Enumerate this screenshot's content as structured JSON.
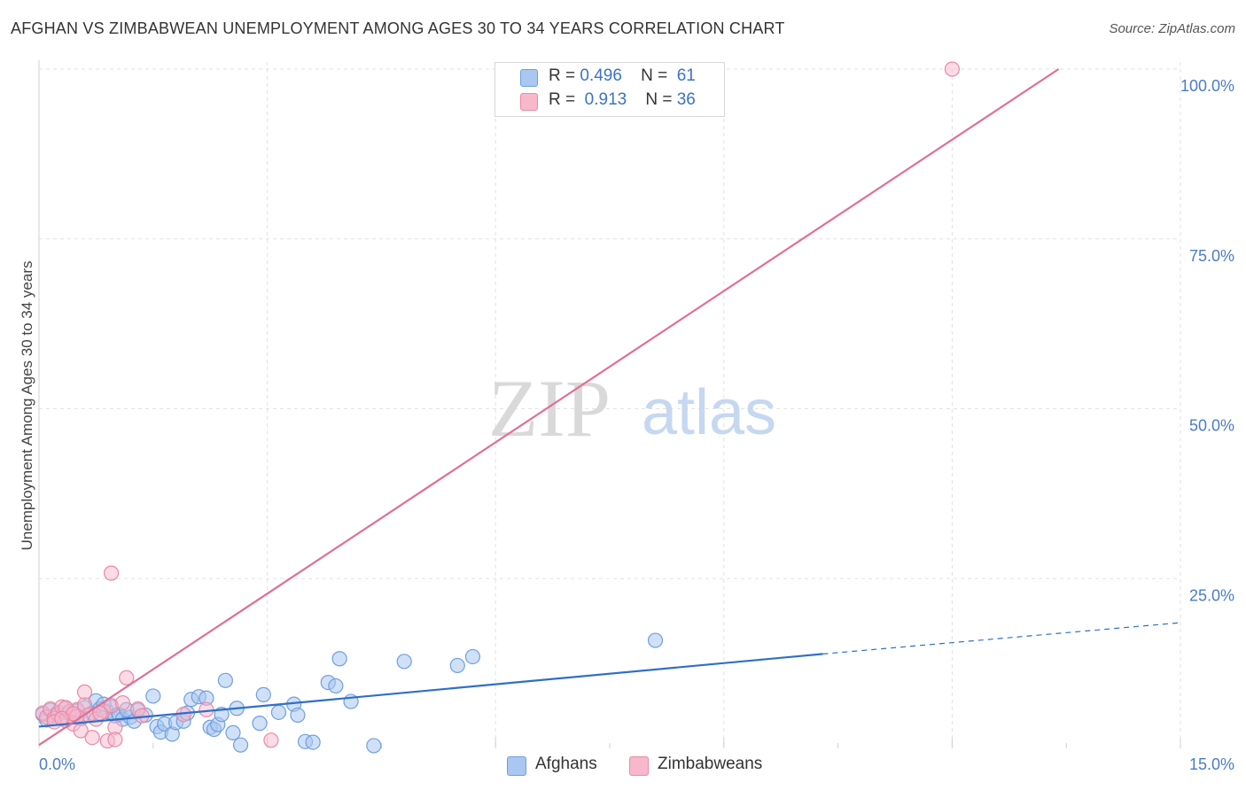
{
  "title": "AFGHAN VS ZIMBABWEAN UNEMPLOYMENT AMONG AGES 30 TO 34 YEARS CORRELATION CHART",
  "source": "Source: ZipAtlas.com",
  "legend": {
    "rows": [
      {
        "r_label": "R =",
        "r_value": "0.496",
        "n_label": "N =",
        "n_value": "61"
      },
      {
        "r_label": "R =",
        "r_value": "0.913",
        "n_label": "N =",
        "n_value": "36"
      }
    ]
  },
  "bottom_legend": {
    "afghans": "Afghans",
    "zimbabweans": "Zimbabweans"
  },
  "watermark": {
    "zip": "ZIP",
    "atlas": "atlas"
  },
  "colors": {
    "afghan_fill": "#a9c7f0",
    "afghan_stroke": "#6f9fdc",
    "afghan_line": "#2f6fc8",
    "zimbabwe_fill": "#f7b8cb",
    "zimbabwe_stroke": "#e88aa7",
    "zimbabwe_line": "#e06f98",
    "grid": "#e2e2e2",
    "tick_text": "#4a7cc7"
  },
  "chart_data": {
    "type": "scatter",
    "title": "AFGHAN VS ZIMBABWEAN UNEMPLOYMENT AMONG AGES 30 TO 34 YEARS CORRELATION CHART",
    "xlabel": "",
    "ylabel": "Unemployment Among Ages 30 to 34 years",
    "xlim": [
      0,
      15
    ],
    "ylim": [
      0,
      100
    ],
    "x_tick_labels": [
      "0.0%",
      "15.0%"
    ],
    "y_ticks": [
      25,
      50,
      75,
      100
    ],
    "y_tick_labels": [
      "25.0%",
      "50.0%",
      "75.0%",
      "100.0%"
    ],
    "grid": true,
    "series": [
      {
        "name": "Afghans",
        "r": 0.496,
        "n": 61,
        "trend": {
          "x0": 0.0,
          "y0": 3.2,
          "x1": 10.3,
          "y1": 13.9,
          "dashed_to_x": 15.0,
          "dashed_to_y": 18.5
        },
        "points": [
          [
            0.05,
            5.0
          ],
          [
            0.1,
            4.2
          ],
          [
            0.15,
            5.6
          ],
          [
            0.2,
            4.8
          ],
          [
            0.25,
            5.3
          ],
          [
            0.3,
            4.5
          ],
          [
            0.35,
            5.9
          ],
          [
            0.4,
            5.1
          ],
          [
            0.45,
            4.7
          ],
          [
            0.5,
            5.5
          ],
          [
            0.6,
            6.0
          ],
          [
            0.7,
            5.2
          ],
          [
            0.75,
            7.0
          ],
          [
            0.8,
            5.8
          ],
          [
            0.9,
            5.4
          ],
          [
            0.95,
            6.1
          ],
          [
            1.0,
            4.8
          ],
          [
            1.05,
            5.0
          ],
          [
            1.1,
            4.3
          ],
          [
            1.2,
            4.6
          ],
          [
            1.25,
            4.0
          ],
          [
            1.3,
            5.6
          ],
          [
            1.4,
            4.9
          ],
          [
            1.5,
            7.7
          ],
          [
            1.55,
            3.2
          ],
          [
            1.6,
            2.4
          ],
          [
            1.65,
            3.6
          ],
          [
            1.75,
            2.1
          ],
          [
            1.8,
            3.8
          ],
          [
            1.9,
            4.0
          ],
          [
            1.95,
            5.2
          ],
          [
            2.0,
            7.2
          ],
          [
            2.1,
            7.6
          ],
          [
            2.2,
            7.4
          ],
          [
            2.25,
            3.1
          ],
          [
            2.3,
            2.8
          ],
          [
            2.35,
            3.5
          ],
          [
            2.4,
            5.0
          ],
          [
            2.45,
            10.0
          ],
          [
            2.55,
            2.3
          ],
          [
            2.6,
            5.9
          ],
          [
            2.65,
            0.5
          ],
          [
            2.9,
            3.7
          ],
          [
            2.95,
            7.9
          ],
          [
            3.15,
            5.3
          ],
          [
            3.35,
            6.5
          ],
          [
            3.4,
            4.9
          ],
          [
            3.5,
            1.0
          ],
          [
            3.6,
            0.9
          ],
          [
            3.8,
            9.7
          ],
          [
            3.9,
            9.2
          ],
          [
            3.95,
            13.2
          ],
          [
            4.1,
            6.9
          ],
          [
            4.4,
            0.4
          ],
          [
            4.8,
            12.8
          ],
          [
            5.5,
            12.2
          ],
          [
            5.7,
            13.5
          ],
          [
            8.1,
            15.9
          ],
          [
            0.55,
            4.4
          ],
          [
            0.85,
            6.5
          ],
          [
            1.15,
            5.7
          ]
        ]
      },
      {
        "name": "Zimbabweans",
        "r": 0.913,
        "n": 36,
        "trend": {
          "x0": 0.0,
          "y0": 0.5,
          "x1": 13.4,
          "y1": 100.0
        },
        "points": [
          [
            0.05,
            5.2
          ],
          [
            0.1,
            4.6
          ],
          [
            0.15,
            5.8
          ],
          [
            0.2,
            4.4
          ],
          [
            0.25,
            5.0
          ],
          [
            0.3,
            6.1
          ],
          [
            0.35,
            4.1
          ],
          [
            0.4,
            5.4
          ],
          [
            0.45,
            3.6
          ],
          [
            0.5,
            5.7
          ],
          [
            0.55,
            2.6
          ],
          [
            0.6,
            6.4
          ],
          [
            0.65,
            4.9
          ],
          [
            0.7,
            1.6
          ],
          [
            0.75,
            4.3
          ],
          [
            0.85,
            5.5
          ],
          [
            0.9,
            1.1
          ],
          [
            0.95,
            6.3
          ],
          [
            1.0,
            3.1
          ],
          [
            1.1,
            6.7
          ],
          [
            1.15,
            10.4
          ],
          [
            1.3,
            5.8
          ],
          [
            1.35,
            4.8
          ],
          [
            1.9,
            5.0
          ],
          [
            2.2,
            5.7
          ],
          [
            3.05,
            1.2
          ],
          [
            0.95,
            25.8
          ],
          [
            0.6,
            8.3
          ],
          [
            0.2,
            3.9
          ],
          [
            0.35,
            6.0
          ],
          [
            0.5,
            4.7
          ],
          [
            0.8,
            5.2
          ],
          [
            1.0,
            1.3
          ],
          [
            0.45,
            5.1
          ],
          [
            0.3,
            4.4
          ],
          [
            12.0,
            100.0
          ]
        ]
      }
    ]
  }
}
